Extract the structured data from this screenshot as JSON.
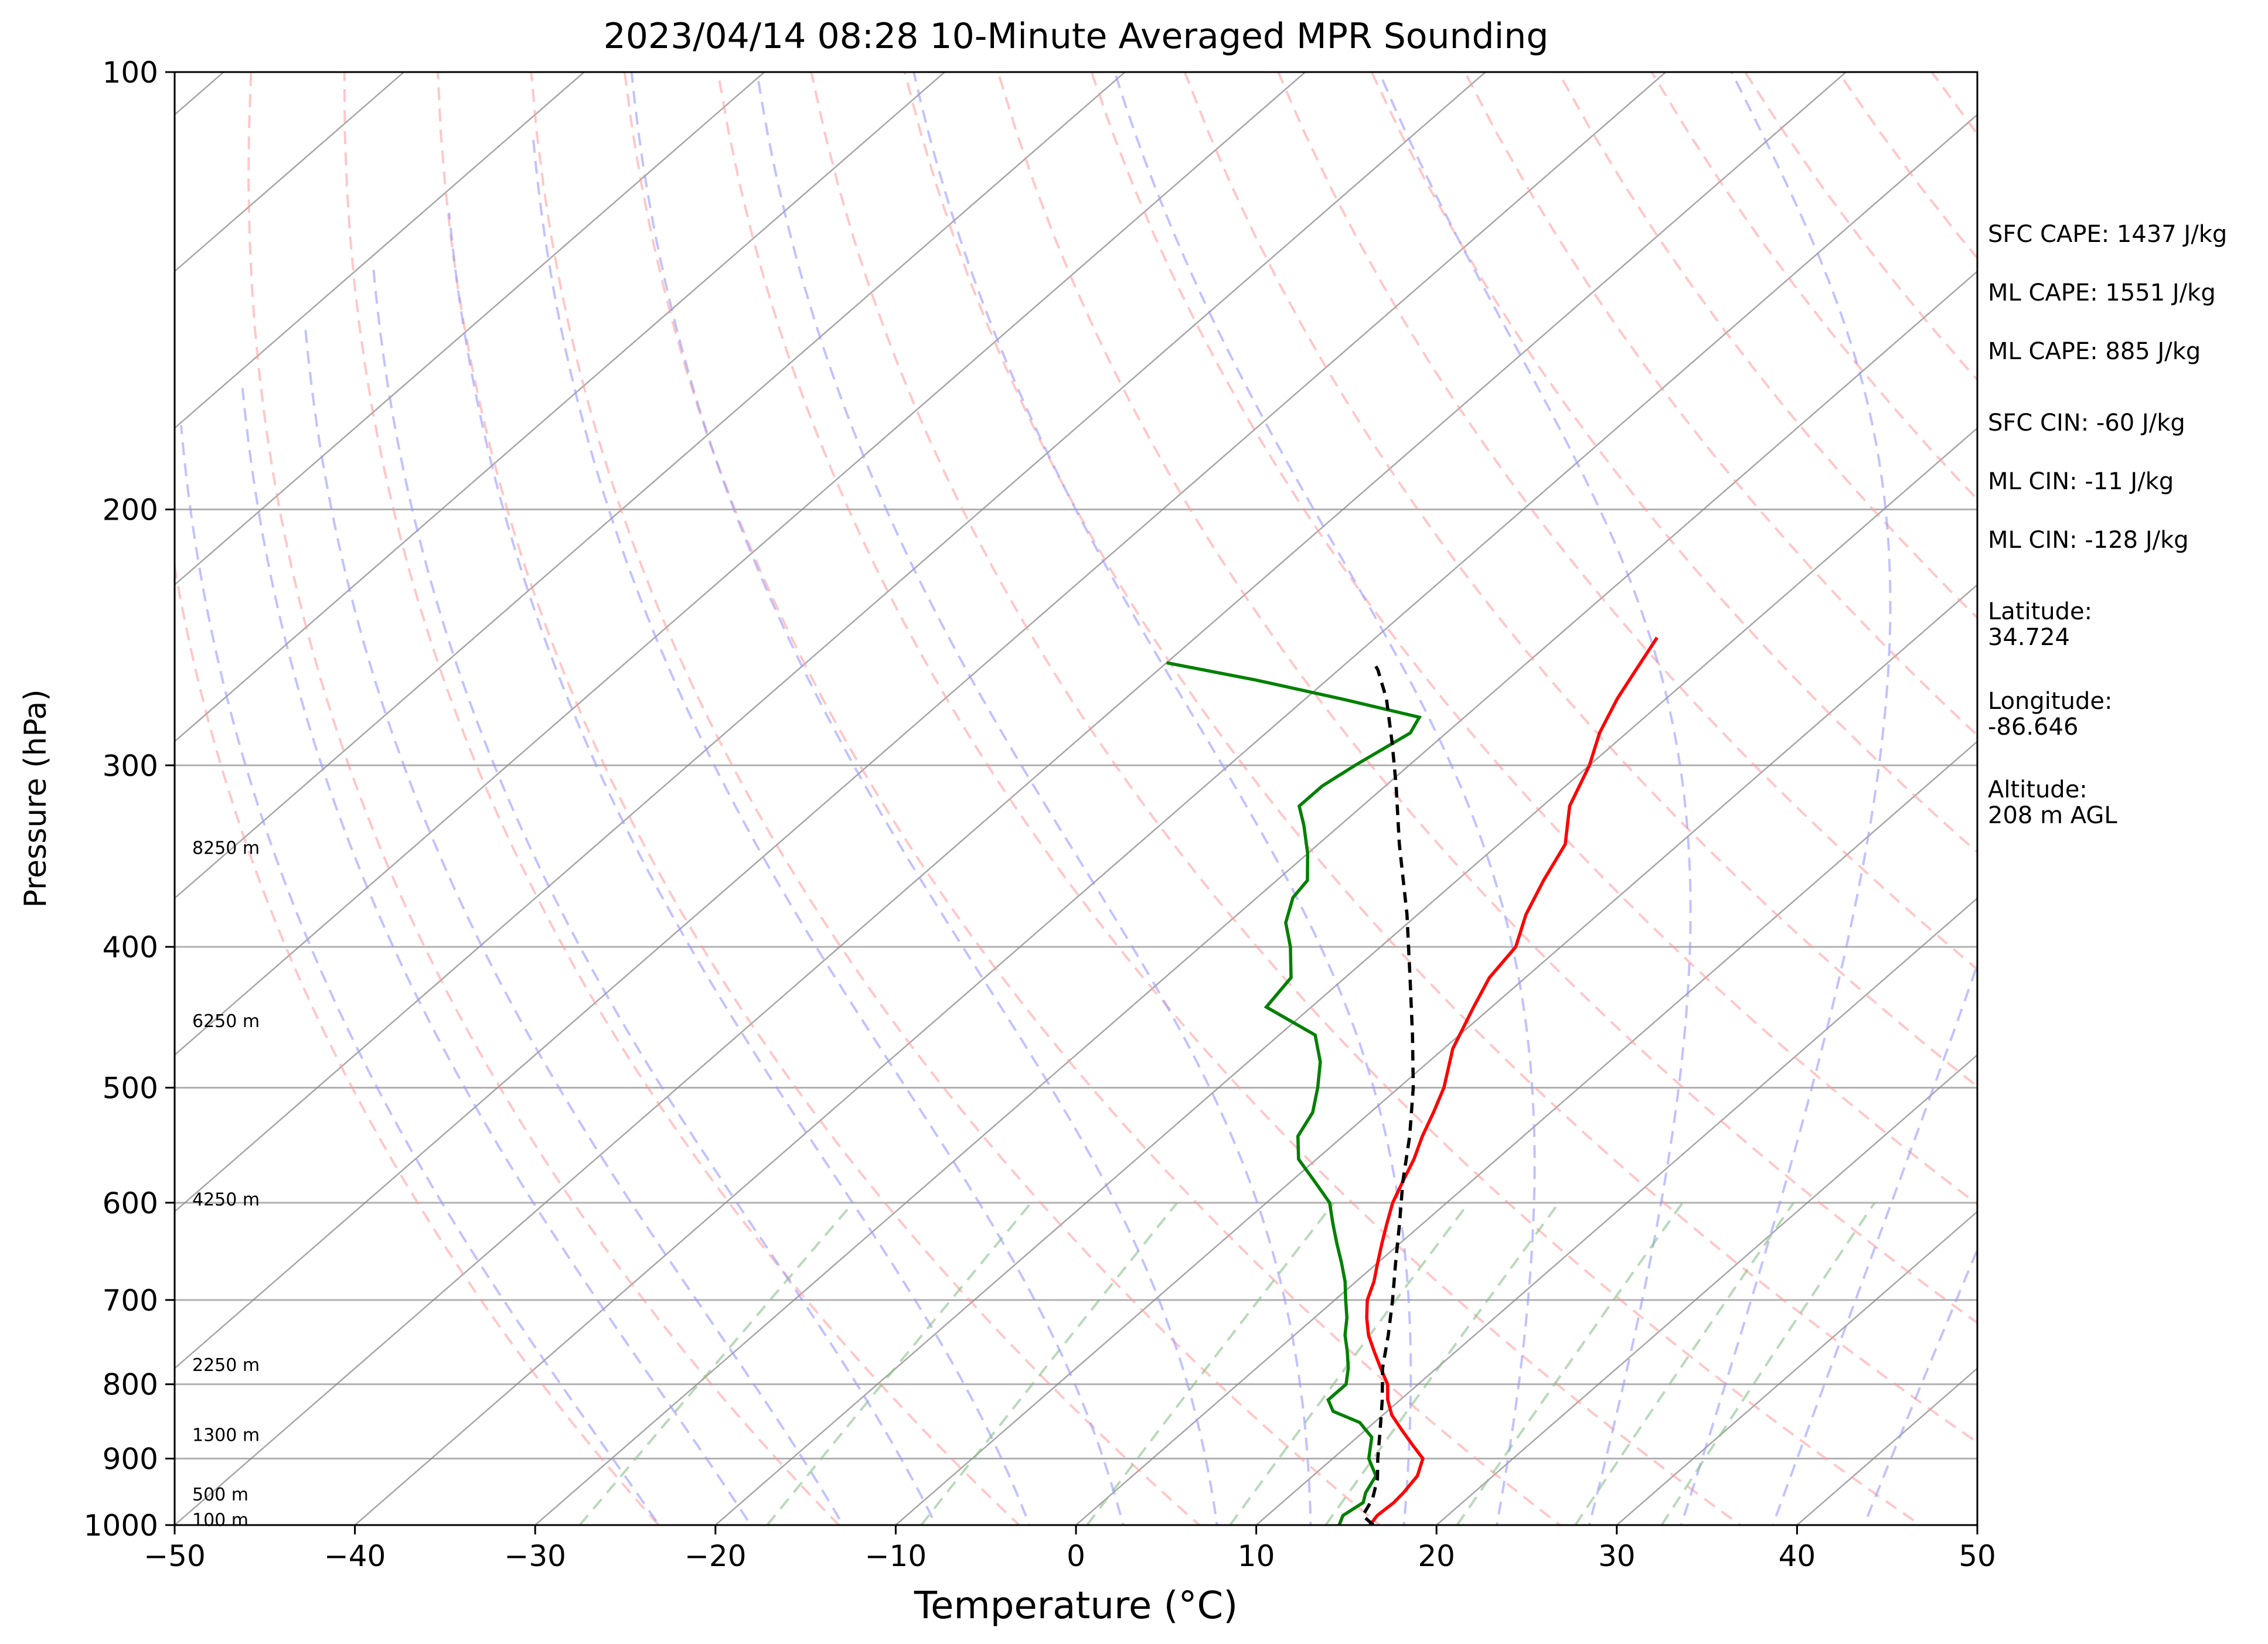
{
  "chart_data": {
    "type": "skew-t",
    "title": "2023/04/14 08:28 10-Minute Averaged MPR Sounding",
    "xlabel": "Temperature (°C)",
    "ylabel": "Pressure (hPa)",
    "xlim": [
      -50,
      50
    ],
    "ylim": [
      1000,
      100
    ],
    "y_scale": "log",
    "x_ticks": [
      "−50",
      "−40",
      "−30",
      "−20",
      "−10",
      "0",
      "10",
      "20",
      "30",
      "40",
      "50"
    ],
    "y_ticks": [
      1000,
      900,
      800,
      700,
      600,
      500,
      400,
      300,
      200,
      100
    ],
    "grid": true,
    "colors": {
      "temperature": "#ff0000",
      "dewpoint": "#008000",
      "parcel": "#000000",
      "dry_adiabats": "#ff9999",
      "moist_adiabats": "#9999ff",
      "mixing_ratio": "#88c088",
      "isotherms": "#888888"
    },
    "series": [
      {
        "key": "temperature",
        "points": [
          [
            1000,
            16.3
          ],
          [
            985,
            16.1
          ],
          [
            965,
            16.2
          ],
          [
            950,
            16.1
          ],
          [
            925,
            15.8
          ],
          [
            900,
            15.0
          ],
          [
            880,
            13.5
          ],
          [
            860,
            12.0
          ],
          [
            840,
            10.5
          ],
          [
            820,
            9.3
          ],
          [
            800,
            8.3
          ],
          [
            780,
            6.9
          ],
          [
            760,
            5.5
          ],
          [
            740,
            4.1
          ],
          [
            720,
            2.9
          ],
          [
            700,
            1.8
          ],
          [
            680,
            1.0
          ],
          [
            660,
            0.0
          ],
          [
            640,
            -1.0
          ],
          [
            620,
            -2.0
          ],
          [
            600,
            -3.0
          ],
          [
            580,
            -3.8
          ],
          [
            560,
            -4.6
          ],
          [
            540,
            -5.6
          ],
          [
            520,
            -6.5
          ],
          [
            500,
            -7.5
          ],
          [
            470,
            -9.5
          ],
          [
            440,
            -11.0
          ],
          [
            420,
            -12.0
          ],
          [
            400,
            -12.5
          ],
          [
            380,
            -14.0
          ],
          [
            360,
            -15.2
          ],
          [
            340,
            -16.3
          ],
          [
            320,
            -18.5
          ],
          [
            300,
            -20.0
          ],
          [
            285,
            -21.5
          ],
          [
            270,
            -22.7
          ],
          [
            258,
            -23.5
          ],
          [
            245,
            -24.4
          ]
        ]
      },
      {
        "key": "dewpoint",
        "points": [
          [
            1000,
            14.6
          ],
          [
            985,
            14.2
          ],
          [
            965,
            14.5
          ],
          [
            950,
            14.0
          ],
          [
            925,
            13.5
          ],
          [
            900,
            12.0
          ],
          [
            870,
            10.8
          ],
          [
            850,
            9.2
          ],
          [
            835,
            7.0
          ],
          [
            820,
            6.0
          ],
          [
            800,
            6.0
          ],
          [
            780,
            5.1
          ],
          [
            760,
            4.0
          ],
          [
            740,
            2.8
          ],
          [
            720,
            1.8
          ],
          [
            700,
            0.6
          ],
          [
            680,
            -0.6
          ],
          [
            660,
            -2.0
          ],
          [
            640,
            -3.5
          ],
          [
            620,
            -5.0
          ],
          [
            600,
            -6.5
          ],
          [
            580,
            -8.7
          ],
          [
            560,
            -11.0
          ],
          [
            540,
            -12.5
          ],
          [
            520,
            -13.2
          ],
          [
            500,
            -14.5
          ],
          [
            480,
            -16.0
          ],
          [
            460,
            -18.0
          ],
          [
            440,
            -22.5
          ],
          [
            420,
            -23.0
          ],
          [
            400,
            -25.0
          ],
          [
            385,
            -26.8
          ],
          [
            370,
            -28.0
          ],
          [
            360,
            -28.3
          ],
          [
            345,
            -30.0
          ],
          [
            330,
            -32.0
          ],
          [
            320,
            -33.5
          ],
          [
            310,
            -33.5
          ],
          [
            300,
            -33.0
          ],
          [
            285,
            -32.0
          ],
          [
            278,
            -32.5
          ],
          [
            270,
            -38.0
          ],
          [
            262,
            -44.0
          ],
          [
            255,
            -50.0
          ]
        ]
      },
      {
        "key": "parcel",
        "points": [
          [
            1000,
            16.5
          ],
          [
            985,
            15.3
          ],
          [
            960,
            14.8
          ],
          [
            930,
            13.8
          ],
          [
            900,
            12.5
          ],
          [
            860,
            10.8
          ],
          [
            820,
            9.0
          ],
          [
            780,
            7.0
          ],
          [
            740,
            5.2
          ],
          [
            700,
            3.2
          ],
          [
            660,
            1.0
          ],
          [
            620,
            -1.3
          ],
          [
            580,
            -3.8
          ],
          [
            540,
            -6.3
          ],
          [
            500,
            -9.2
          ],
          [
            460,
            -12.6
          ],
          [
            420,
            -16.4
          ],
          [
            380,
            -20.6
          ],
          [
            340,
            -25.5
          ],
          [
            310,
            -29.4
          ],
          [
            290,
            -32.3
          ],
          [
            270,
            -35.5
          ],
          [
            258,
            -37.8
          ],
          [
            255,
            -38.5
          ]
        ]
      }
    ],
    "height_labels": [
      {
        "text": "8250 m",
        "p": 342
      },
      {
        "text": "6250 m",
        "p": 450
      },
      {
        "text": "4250 m",
        "p": 597
      },
      {
        "text": "2250 m",
        "p": 776
      },
      {
        "text": "1300 m",
        "p": 867
      },
      {
        "text": "500 m",
        "p": 953
      },
      {
        "text": "100 m",
        "p": 992
      }
    ],
    "annotations": [
      "SFC CAPE: 1437 J/kg",
      "ML CAPE: 1551 J/kg",
      "ML CAPE: 885 J/kg",
      "SFC CIN: -60 J/kg",
      "ML CIN: -11 J/kg",
      "ML CIN: -128 J/kg",
      "Latitude:\n34.724",
      "Longitude:\n-86.646",
      "Altitude:\n208 m AGL"
    ]
  }
}
